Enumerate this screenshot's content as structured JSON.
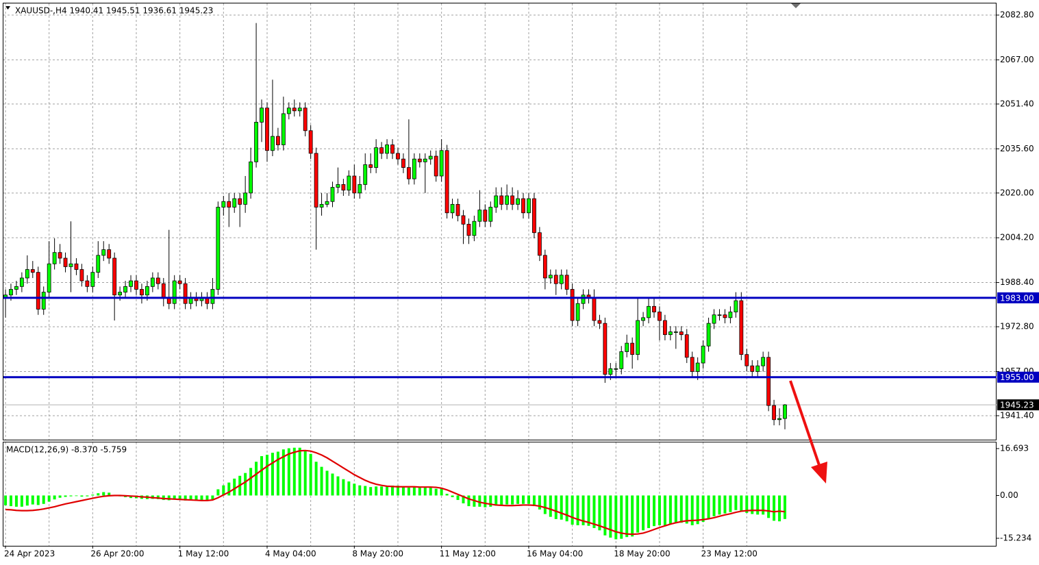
{
  "chart_data": [
    {
      "type": "candlestick",
      "title": "XAUUSD-,H4  1940.41 1945.51 1936.61 1945.23",
      "categories": [
        "24 Apr 2023",
        null,
        null,
        null,
        null,
        null,
        null,
        null,
        null,
        null,
        null,
        null,
        null,
        null,
        null,
        null,
        "26 Apr 20:00",
        null,
        null,
        null,
        null,
        null,
        null,
        null,
        null,
        null,
        null,
        null,
        null,
        null,
        null,
        null,
        "1 May 12:00",
        null,
        null,
        null,
        null,
        null,
        null,
        null,
        null,
        null,
        null,
        null,
        null,
        null,
        null,
        null,
        "4 May 04:00",
        null,
        null,
        null,
        null,
        null,
        null,
        null,
        null,
        null,
        null,
        null,
        null,
        null,
        null,
        null,
        "8 May 20:00",
        null,
        null,
        null,
        null,
        null,
        null,
        null,
        null,
        null,
        null,
        null,
        null,
        null,
        null,
        null,
        "11 May 12:00",
        null,
        null,
        null,
        null,
        null,
        null,
        null,
        null,
        null,
        null,
        null,
        null,
        null,
        null,
        null,
        "16 May 04:00",
        null,
        null,
        null,
        null,
        null,
        null,
        null,
        null,
        null,
        null,
        null,
        null,
        null,
        null,
        null,
        "18 May 20:00",
        null,
        null,
        null,
        null,
        null,
        null,
        null,
        null,
        null,
        null,
        null,
        null,
        null,
        null,
        null,
        "23 May 12:00",
        null,
        null,
        null,
        null,
        null,
        null,
        null,
        null,
        null,
        null,
        null,
        null,
        null,
        null,
        null
      ],
      "open": [
        1983,
        1984,
        1986,
        1987,
        1990,
        1993,
        1992,
        1979,
        1985,
        1995,
        1999,
        1997,
        1994,
        1995,
        1993,
        1989,
        1987,
        1992,
        1998,
        2000,
        1997,
        1984,
        1985,
        1987,
        1989,
        1986,
        1984,
        1987,
        1990,
        1988,
        1983,
        1981,
        1989,
        1988,
        1981,
        1983,
        1982,
        1983,
        1981,
        1986,
        2015,
        2017,
        2015,
        2018,
        2016,
        2020,
        2031,
        2045,
        2050,
        2035,
        2040,
        2037,
        2048,
        2050,
        2049,
        2050,
        2042,
        2034,
        2015,
        2016,
        2017,
        2022,
        2023,
        2021,
        2026,
        2020,
        2023,
        2030,
        2029,
        2036,
        2034,
        2037,
        2034,
        2032,
        2029,
        2025,
        2032,
        2031,
        2032,
        2033,
        2026,
        2035,
        2013,
        2016,
        2012,
        2009,
        2005,
        2010,
        2014,
        2010,
        2015,
        2019,
        2016,
        2019,
        2016,
        2018,
        2013,
        2018,
        2006,
        1998,
        1990,
        1991,
        1988,
        1991,
        1986,
        1975,
        1981,
        1984,
        1983,
        1975,
        1974,
        1956,
        1958,
        1958,
        1964,
        1967,
        1963,
        1975,
        1976,
        1980,
        1978,
        1975,
        1970,
        1971,
        1971,
        1970,
        1962,
        1957,
        1960,
        1966,
        1974,
        1977,
        1977,
        1976,
        1978,
        1982,
        1963,
        1959,
        1957,
        1959,
        1962,
        1945,
        1940,
        1940.41
      ],
      "high": [
        1986,
        1988,
        1989,
        1992,
        1998,
        1996,
        1994,
        1987,
        2003,
        2004,
        2002,
        1999,
        2010,
        1997,
        1995,
        1991,
        1994,
        2003,
        2003,
        2002,
        1999,
        1987,
        1989,
        1991,
        1991,
        1988,
        1989,
        1992,
        1992,
        1990,
        2007,
        1991,
        1991,
        1990,
        1985,
        1985,
        1985,
        1985,
        1990,
        2017,
        2019,
        2020,
        2020,
        2020,
        2026,
        2036,
        2080,
        2053,
        2052,
        2060,
        2043,
        2054,
        2052,
        2053,
        2052,
        2052,
        2044,
        2036,
        2020,
        2020,
        2024,
        2029,
        2025,
        2028,
        2030,
        2026,
        2034,
        2034,
        2039,
        2038,
        2039,
        2039,
        2036,
        2034,
        2046,
        2034,
        2034,
        2034,
        2035,
        2035,
        2039,
        2037,
        2018,
        2018,
        2014,
        2011,
        2012,
        2021,
        2016,
        2017,
        2022,
        2022,
        2023,
        2022,
        2021,
        2020,
        2020,
        2020,
        2008,
        2000,
        1993,
        1993,
        1993,
        1993,
        1988,
        1983,
        1986,
        1986,
        1986,
        1977,
        1976,
        1960,
        1960,
        1966,
        1970,
        1969,
        1983,
        1978,
        1983,
        1983,
        1980,
        1977,
        1973,
        1973,
        1973,
        1972,
        1964,
        1962,
        1968,
        1976,
        1979,
        1979,
        1979,
        1980,
        1985,
        1985,
        1965,
        1961,
        1961,
        1964,
        1964,
        1947,
        1944,
        1945.51
      ],
      "low": [
        1976,
        1982,
        1984,
        1985,
        1988,
        1990,
        1977,
        1977,
        1983,
        1993,
        1995,
        1992,
        1985,
        1991,
        1987,
        1985,
        1985,
        1990,
        1996,
        1995,
        1975,
        1982,
        1983,
        1985,
        1984,
        1981,
        1982,
        1985,
        1986,
        1980,
        1979,
        1979,
        1986,
        1979,
        1979,
        1980,
        1980,
        1979,
        1979,
        1984,
        2012,
        2008,
        2013,
        2008,
        2013,
        2018,
        2029,
        2038,
        2031,
        2033,
        2035,
        2035,
        2046,
        2047,
        2047,
        2040,
        2032,
        2000,
        2012,
        2015,
        2015,
        2020,
        2019,
        2019,
        2018,
        2018,
        2021,
        2027,
        2027,
        2032,
        2032,
        2032,
        2030,
        2027,
        2023,
        2023,
        2029,
        2020,
        2030,
        2024,
        2024,
        2011,
        2011,
        2010,
        2002,
        2002,
        2003,
        2008,
        2008,
        2008,
        2013,
        2014,
        2014,
        2014,
        2014,
        2011,
        2011,
        2004,
        1996,
        1986,
        1988,
        1984,
        1986,
        1984,
        1973,
        1973,
        1979,
        1981,
        1973,
        1972,
        1953,
        1954,
        1955,
        1956,
        1962,
        1958,
        1961,
        1973,
        1974,
        1976,
        1968,
        1968,
        1968,
        1965,
        1968,
        1960,
        1955,
        1954,
        1958,
        1964,
        1972,
        1975,
        1974,
        1974,
        1976,
        1961,
        1957,
        1955,
        1955,
        1957,
        1943,
        1938,
        1938,
        1936.61
      ],
      "close": [
        1984,
        1986,
        1987,
        1990,
        1993,
        1992,
        1979,
        1985,
        1995,
        1999,
        1997,
        1994,
        1995,
        1993,
        1989,
        1987,
        1992,
        1998,
        2000,
        1997,
        1984,
        1985,
        1987,
        1989,
        1986,
        1984,
        1987,
        1990,
        1988,
        1983,
        1981,
        1989,
        1988,
        1981,
        1983,
        1982,
        1983,
        1981,
        1986,
        2015,
        2017,
        2015,
        2018,
        2016,
        2020,
        2031,
        2045,
        2050,
        2035,
        2040,
        2037,
        2048,
        2050,
        2049,
        2050,
        2042,
        2034,
        2015,
        2016,
        2017,
        2022,
        2023,
        2021,
        2026,
        2020,
        2023,
        2030,
        2029,
        2036,
        2034,
        2037,
        2034,
        2032,
        2029,
        2025,
        2032,
        2031,
        2032,
        2033,
        2026,
        2035,
        2013,
        2016,
        2012,
        2009,
        2005,
        2010,
        2014,
        2010,
        2015,
        2019,
        2016,
        2019,
        2016,
        2018,
        2013,
        2018,
        2006,
        1998,
        1990,
        1991,
        1988,
        1991,
        1986,
        1975,
        1981,
        1984,
        1983,
        1975,
        1974,
        1956,
        1958,
        1958,
        1964,
        1967,
        1963,
        1975,
        1976,
        1980,
        1978,
        1975,
        1970,
        1971,
        1971,
        1970,
        1962,
        1957,
        1960,
        1966,
        1974,
        1977,
        1977,
        1976,
        1978,
        1982,
        1963,
        1959,
        1957,
        1959,
        1962,
        1945,
        1940,
        1940.41,
        1945.23
      ],
      "up_color": "#00ff00",
      "down_color": "#ff0000",
      "ylim": [
        1932.94,
        2086.91
      ],
      "yticks": [
        {
          "value": 2082.8,
          "label": "2082.80"
        },
        {
          "value": 2067,
          "label": "2067.00"
        },
        {
          "value": 2051.4,
          "label": "2051.40"
        },
        {
          "value": 2035.6,
          "label": "2035.60"
        },
        {
          "value": 2020,
          "label": "2020.00"
        },
        {
          "value": 2004.2,
          "label": "2004.20"
        },
        {
          "value": 1988.4,
          "label": "1988.40"
        },
        {
          "value": 1972.8,
          "label": "1972.80"
        },
        {
          "value": 1957,
          "label": "1957.00"
        },
        {
          "value": 1941.4,
          "label": "1941.40"
        }
      ],
      "grid": true,
      "hlines": [
        {
          "value": 1983,
          "label": "1983.00",
          "color": "#0000c0"
        },
        {
          "value": 1955,
          "label": "1955.00",
          "color": "#0000c0"
        }
      ],
      "current_price": {
        "value": 1945.23,
        "label": "1945.23"
      }
    },
    {
      "type": "macd",
      "title": "MACD(12,26,9) -8.370 -5.759",
      "series": [
        {
          "kind": "bar",
          "color": "#00ff00",
          "values": [
            -3.5,
            -3.8,
            -4.0,
            -4.0,
            -3.6,
            -3.2,
            -3.4,
            -3.0,
            -2.2,
            -1.4,
            -0.8,
            -0.5,
            -0.3,
            -0.2,
            -0.4,
            -0.3,
            0.3,
            0.8,
            1.2,
            1.0,
            0.2,
            -0.3,
            -0.6,
            -0.9,
            -1.0,
            -1.2,
            -1.3,
            -1.2,
            -1.3,
            -1.6,
            -1.7,
            -1.5,
            -1.5,
            -1.8,
            -1.8,
            -1.9,
            -1.8,
            -1.8,
            -1.4,
            2.2,
            3.6,
            4.6,
            6.0,
            7.0,
            8.0,
            9.8,
            12.0,
            14.0,
            14.5,
            15.2,
            15.6,
            16.4,
            16.8,
            17.0,
            17.0,
            16.2,
            14.8,
            12.0,
            10.2,
            8.8,
            7.8,
            6.8,
            5.8,
            5.0,
            4.2,
            3.6,
            3.4,
            3.0,
            3.2,
            3.2,
            3.4,
            3.5,
            3.5,
            3.2,
            2.8,
            2.9,
            2.8,
            2.8,
            2.9,
            2.4,
            2.6,
            0.6,
            -0.6,
            -1.6,
            -2.8,
            -3.8,
            -4.0,
            -4.0,
            -4.2,
            -4.0,
            -3.6,
            -3.6,
            -3.2,
            -3.2,
            -3.0,
            -3.0,
            -3.0,
            -3.8,
            -5.0,
            -6.6,
            -7.6,
            -8.4,
            -8.6,
            -9.2,
            -10.4,
            -10.6,
            -10.6,
            -10.8,
            -11.6,
            -12.4,
            -14.2,
            -15.0,
            -15.6,
            -15.4,
            -14.8,
            -14.6,
            -13.2,
            -12.4,
            -11.6,
            -10.9,
            -10.6,
            -10.6,
            -10.2,
            -9.9,
            -9.7,
            -10.0,
            -10.6,
            -10.2,
            -9.4,
            -8.2,
            -7.4,
            -6.8,
            -6.4,
            -5.9,
            -5.2,
            -5.6,
            -6.2,
            -6.6,
            -6.8,
            -6.8,
            -8.0,
            -9.0,
            -9.2,
            -8.37
          ]
        },
        {
          "kind": "line",
          "color": "#e00000",
          "values": [
            -5.0,
            -5.1,
            -5.3,
            -5.4,
            -5.4,
            -5.3,
            -5.1,
            -4.8,
            -4.4,
            -4.0,
            -3.5,
            -3.0,
            -2.6,
            -2.2,
            -1.8,
            -1.4,
            -1.0,
            -0.6,
            -0.3,
            -0.1,
            0.0,
            0.0,
            -0.1,
            -0.2,
            -0.3,
            -0.5,
            -0.6,
            -0.8,
            -0.9,
            -1.1,
            -1.2,
            -1.3,
            -1.4,
            -1.5,
            -1.6,
            -1.7,
            -1.8,
            -1.8,
            -1.6,
            -0.8,
            0.2,
            1.2,
            2.4,
            3.6,
            4.8,
            6.2,
            7.6,
            9.0,
            10.4,
            11.6,
            12.8,
            13.8,
            14.8,
            15.4,
            15.9,
            16.0,
            15.8,
            15.2,
            14.4,
            13.4,
            12.2,
            11.0,
            9.8,
            8.6,
            7.4,
            6.4,
            5.4,
            4.6,
            4.0,
            3.6,
            3.3,
            3.2,
            3.1,
            3.1,
            3.1,
            3.1,
            3.0,
            3.0,
            3.0,
            2.9,
            2.6,
            2.0,
            1.2,
            0.4,
            -0.4,
            -1.2,
            -1.8,
            -2.4,
            -2.8,
            -3.1,
            -3.4,
            -3.5,
            -3.6,
            -3.6,
            -3.5,
            -3.4,
            -3.4,
            -3.5,
            -3.8,
            -4.3,
            -4.9,
            -5.6,
            -6.3,
            -7.0,
            -7.8,
            -8.5,
            -9.1,
            -9.6,
            -10.2,
            -10.8,
            -11.5,
            -12.2,
            -12.9,
            -13.4,
            -13.7,
            -13.8,
            -13.7,
            -13.4,
            -12.8,
            -12.1,
            -11.4,
            -10.8,
            -10.2,
            -9.7,
            -9.3,
            -9.0,
            -8.9,
            -8.8,
            -8.6,
            -8.3,
            -7.9,
            -7.4,
            -6.9,
            -6.5,
            -6.0,
            -5.6,
            -5.4,
            -5.3,
            -5.3,
            -5.3,
            -5.5,
            -5.8,
            -5.6,
            -5.759
          ]
        }
      ],
      "ylim": [
        -17.92,
        19.13
      ],
      "yticks": [
        16.693,
        {
          "value": 0,
          "label": "0.00"
        },
        -15.234
      ]
    }
  ]
}
